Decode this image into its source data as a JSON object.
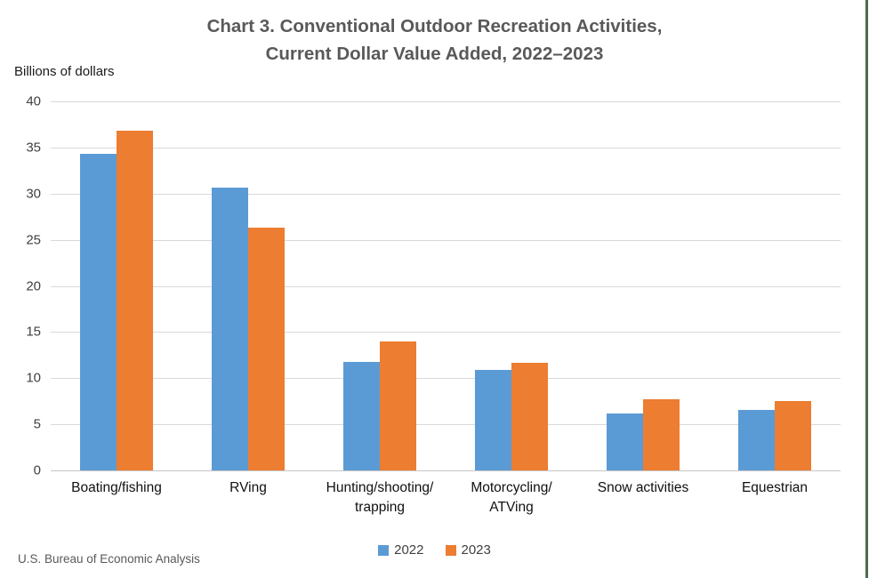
{
  "page": {
    "source_note": "U.S. Bureau of Economic Analysis"
  },
  "chart_data": {
    "type": "bar",
    "title_line1": "Chart 3. Conventional Outdoor Recreation Activities,",
    "title_line2": "Current Dollar Value Added, 2022–2023",
    "unit_label": "Billions of dollars",
    "categories": [
      "Boating/fishing",
      "RVing",
      "Hunting/shooting/\ntrapping",
      "Motorcycling/\nATVing",
      "Snow activities",
      "Equestrian"
    ],
    "series": [
      {
        "name": "2022",
        "color": "#5B9BD5",
        "values": [
          34.3,
          30.7,
          11.8,
          10.9,
          6.2,
          6.6
        ]
      },
      {
        "name": "2023",
        "color": "#ED7D31",
        "values": [
          36.8,
          26.3,
          14.0,
          11.7,
          7.7,
          7.5
        ]
      }
    ],
    "xlabel": "",
    "ylabel": "Billions of dollars",
    "ylim": [
      0,
      40
    ],
    "y_ticks": [
      0,
      5,
      10,
      15,
      20,
      25,
      30,
      35,
      40
    ],
    "grid": true,
    "legend_position": "bottom",
    "gridline_color": "#d9d9d9"
  }
}
